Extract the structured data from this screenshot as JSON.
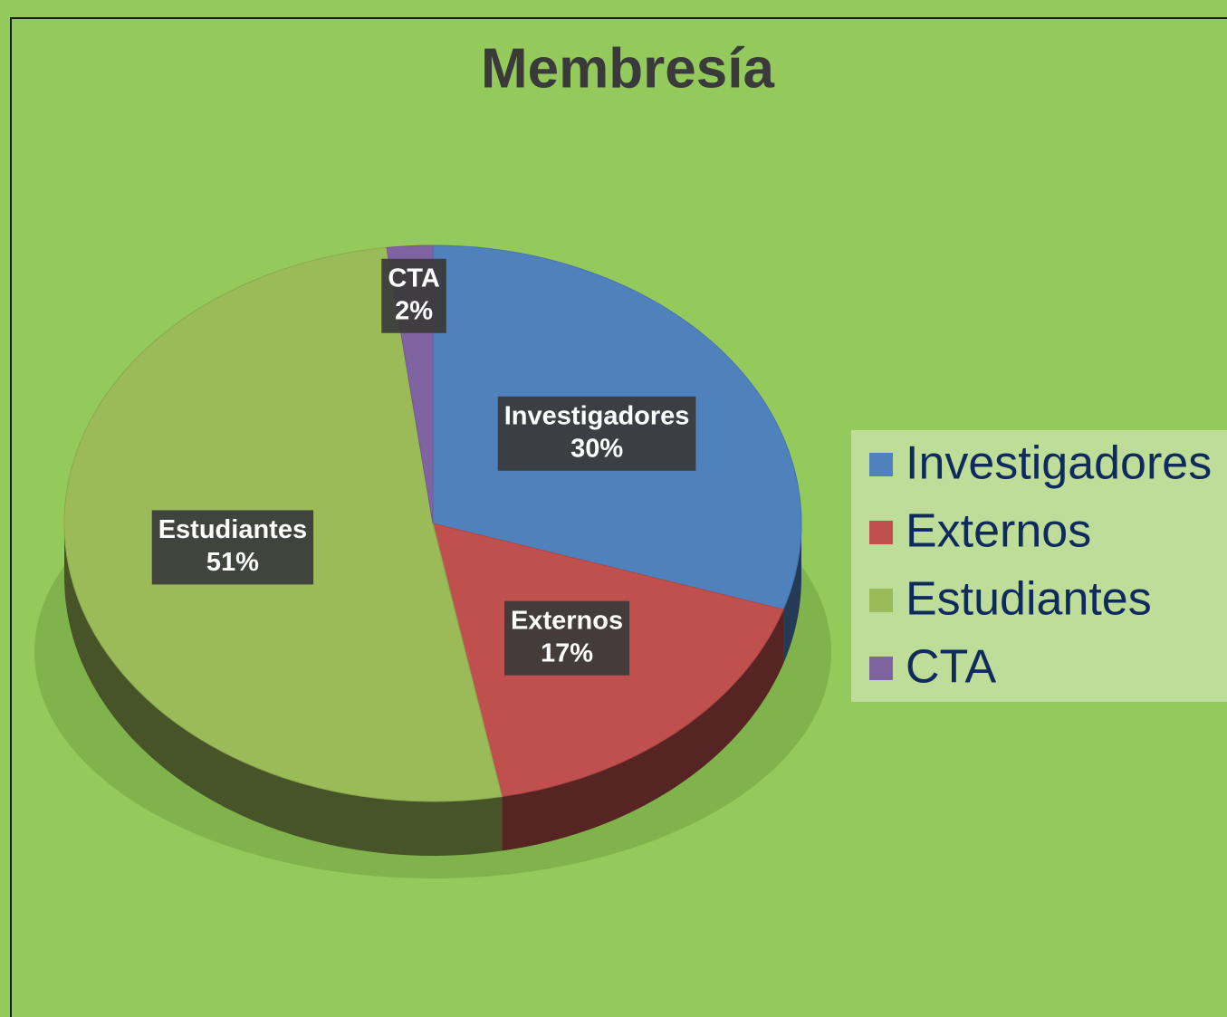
{
  "chart_data": {
    "type": "pie",
    "title": "Membresía",
    "categories": [
      "Investigadores",
      "Externos",
      "Estudiantes",
      "CTA"
    ],
    "values": [
      30,
      17,
      51,
      2
    ],
    "value_labels": [
      "30%",
      "17%",
      "51%",
      "2%"
    ],
    "colors": [
      "#4f81bd",
      "#c0504d",
      "#9bbb59",
      "#8064a2"
    ],
    "legend": "right"
  }
}
